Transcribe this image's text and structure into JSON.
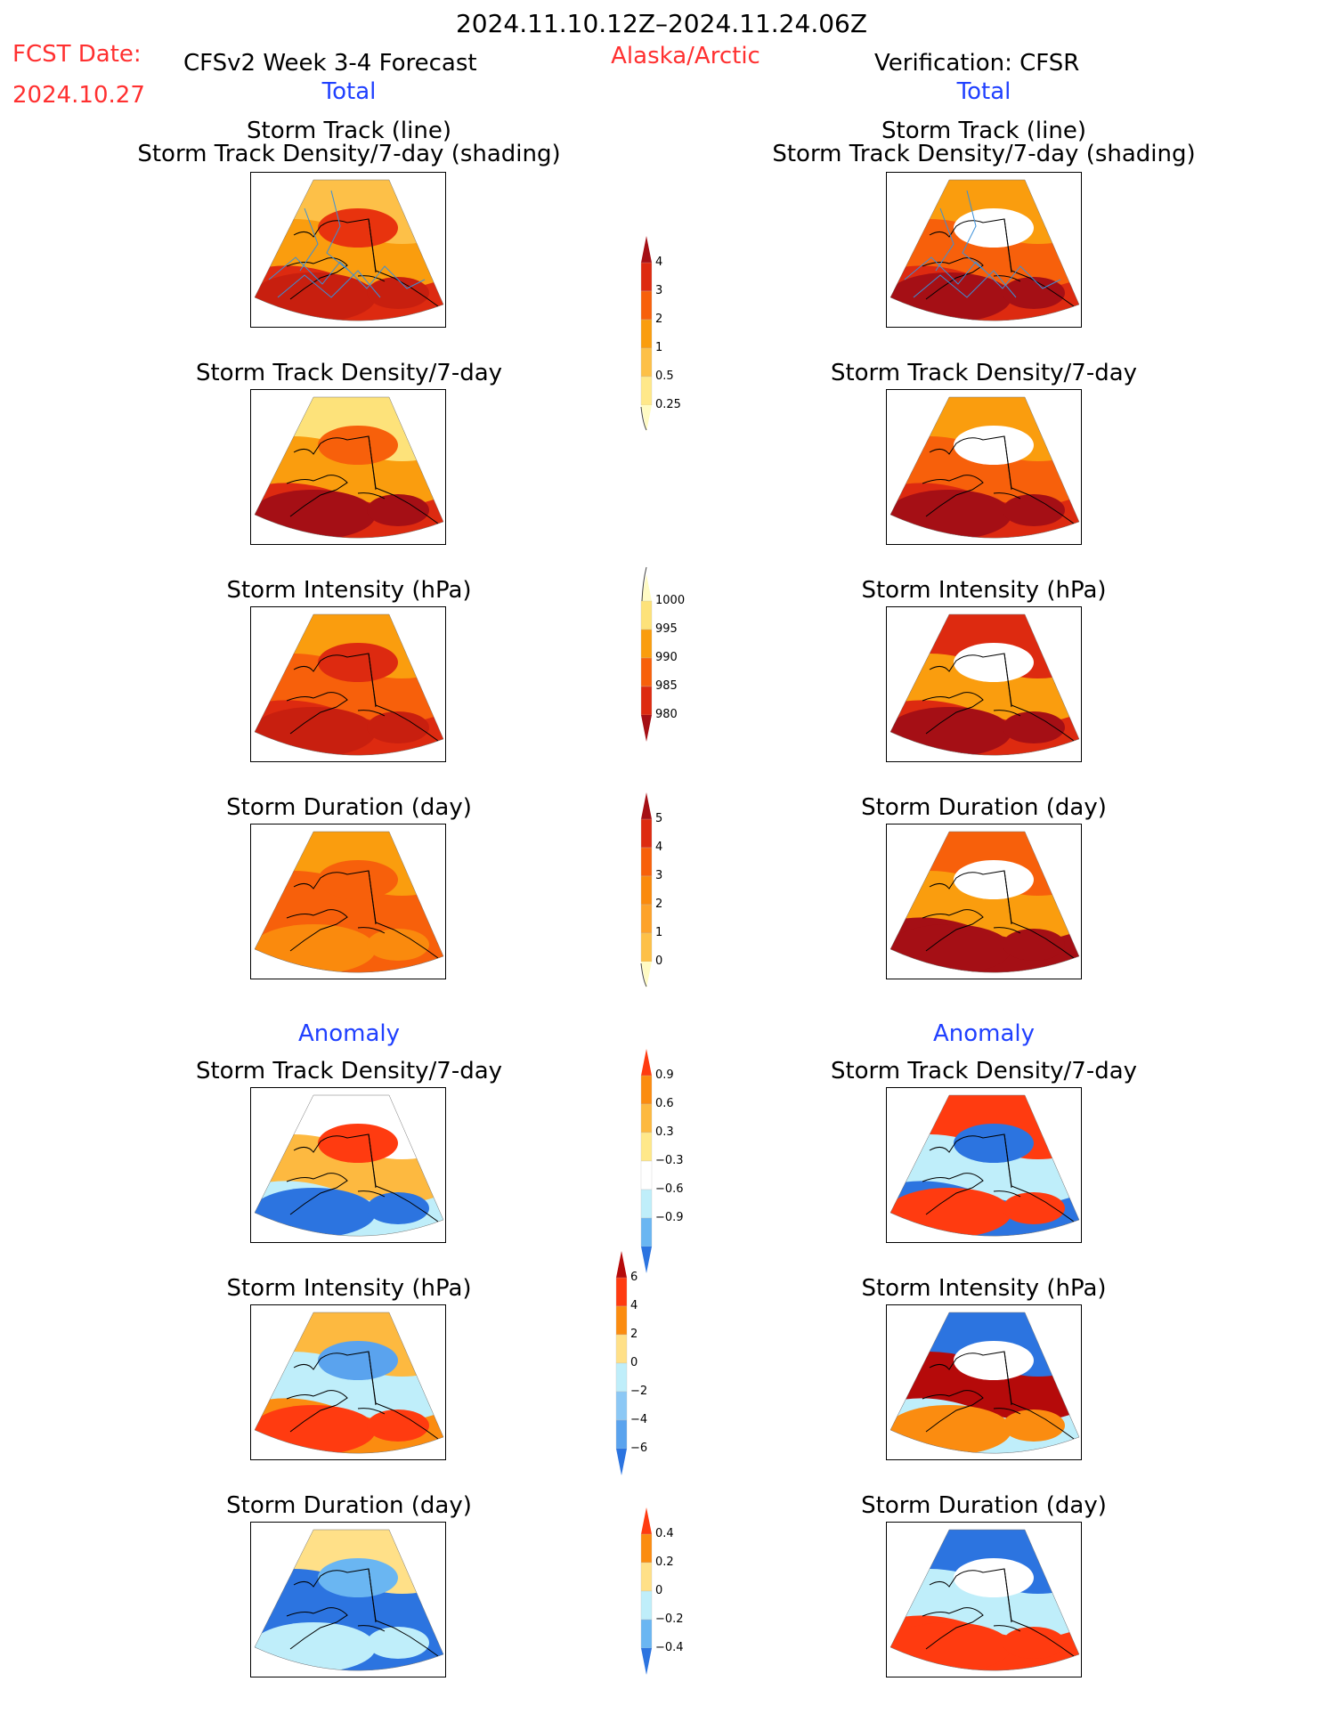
{
  "header": {
    "date_range": "2024.11.10.12Z–2024.11.24.06Z",
    "fcst_label": "FCST Date:",
    "fcst_date": "2024.10.27",
    "forecast_title": "CFSv2 Week 3-4 Forecast",
    "region": "Alaska/Arctic",
    "verification_title": "Verification: CFSR"
  },
  "sections": {
    "total": "Total",
    "anomaly": "Anomaly"
  },
  "panel_titles": {
    "track_line": "Storm Track (line)",
    "track_shading": "Storm Track Density/7-day (shading)",
    "density": "Storm Track Density/7-day",
    "intensity": "Storm Intensity (hPa)",
    "duration": "Storm Duration (day)"
  },
  "colorbars": {
    "density_total": {
      "labels": [
        "4",
        "3",
        "2",
        "1",
        "0.5",
        "0.25"
      ],
      "colors": [
        "#a50f15",
        "#dd2a10",
        "#f7600b",
        "#fa9d0e",
        "#fdc048",
        "#ffe88a",
        "#fffbc4"
      ]
    },
    "intensity_total": {
      "labels": [
        "1000",
        "995",
        "990",
        "985",
        "980"
      ],
      "colors": [
        "#fffbc4",
        "#fde27a",
        "#fa9d0e",
        "#f7600b",
        "#dd2a10",
        "#a50f15"
      ]
    },
    "duration_total": {
      "labels": [
        "5",
        "4",
        "3",
        "2",
        "1",
        "0"
      ],
      "colors": [
        "#a50f15",
        "#dd2a10",
        "#f7600b",
        "#fa8a0d",
        "#fda22a",
        "#fdc048",
        "#fffbc4"
      ]
    },
    "density_anom": {
      "labels": [
        "0.9",
        "0.6",
        "0.3",
        "−0.3",
        "−0.6",
        "−0.9"
      ],
      "colors": [
        "#ff3b10",
        "#fb8c10",
        "#fdb940",
        "#ffe88a",
        "#ffffff",
        "#bfeefa",
        "#6ab6f2",
        "#2c74e0"
      ]
    },
    "intensity_anom": {
      "labels": [
        "6",
        "4",
        "2",
        "0",
        "−2",
        "−4",
        "−6"
      ],
      "colors": [
        "#b50a0a",
        "#ff3b10",
        "#fb8c10",
        "#ffe088",
        "#bfeefa",
        "#8cc8f5",
        "#5aa3ee",
        "#2c74e0"
      ]
    },
    "duration_anom": {
      "labels": [
        "0.4",
        "0.2",
        "0",
        "−0.2",
        "−0.4"
      ],
      "colors": [
        "#ff3b10",
        "#fb8c10",
        "#ffe088",
        "#bfeefa",
        "#6ab6f2",
        "#2c74e0"
      ]
    }
  },
  "maps": {
    "fc_track": [
      "#fdc048",
      "#fa9d0e",
      "#e8330e",
      "#dd2a10",
      "#c81f0f"
    ],
    "obs_track": [
      "#fa9d0e",
      "#f7600b",
      "#ffffff",
      "#dd2a10",
      "#a50f15"
    ],
    "fc_density": [
      "#fde27a",
      "#fa9d0e",
      "#f7600b",
      "#dd2a10",
      "#a50f15"
    ],
    "obs_density": [
      "#fa9d0e",
      "#f7600b",
      "#ffffff",
      "#dd2a10",
      "#a50f15"
    ],
    "fc_intensity": [
      "#fa9d0e",
      "#f7600b",
      "#dd2a10",
      "#dd2a10",
      "#c81f0f"
    ],
    "obs_intensity": [
      "#dd2a10",
      "#fa9d0e",
      "#ffffff",
      "#dd2a10",
      "#a50f15"
    ],
    "fc_duration": [
      "#fa9d0e",
      "#f7600b",
      "#f7600b",
      "#f7600b",
      "#fa8a0d"
    ],
    "obs_duration": [
      "#f7600b",
      "#fa9d0e",
      "#ffffff",
      "#a50f15",
      "#a50f15"
    ],
    "fc_density_anom": [
      "#ffffff",
      "#fdb940",
      "#ff3b10",
      "#bfeefa",
      "#2c74e0"
    ],
    "obs_density_anom": [
      "#ff3b10",
      "#bfeefa",
      "#2c74e0",
      "#2c74e0",
      "#ff3b10"
    ],
    "fc_intensity_anom": [
      "#fdb940",
      "#bfeefa",
      "#5aa3ee",
      "#fb8c10",
      "#ff3b10"
    ],
    "obs_intensity_anom": [
      "#2c74e0",
      "#b50a0a",
      "#ffffff",
      "#bfeefa",
      "#fb8c10"
    ],
    "fc_duration_anom": [
      "#ffe088",
      "#2c74e0",
      "#6ab6f2",
      "#2c74e0",
      "#bfeefa"
    ],
    "obs_duration_anom": [
      "#2c74e0",
      "#bfeefa",
      "#ffffff",
      "#ff3b10",
      "#ff3b10"
    ]
  }
}
